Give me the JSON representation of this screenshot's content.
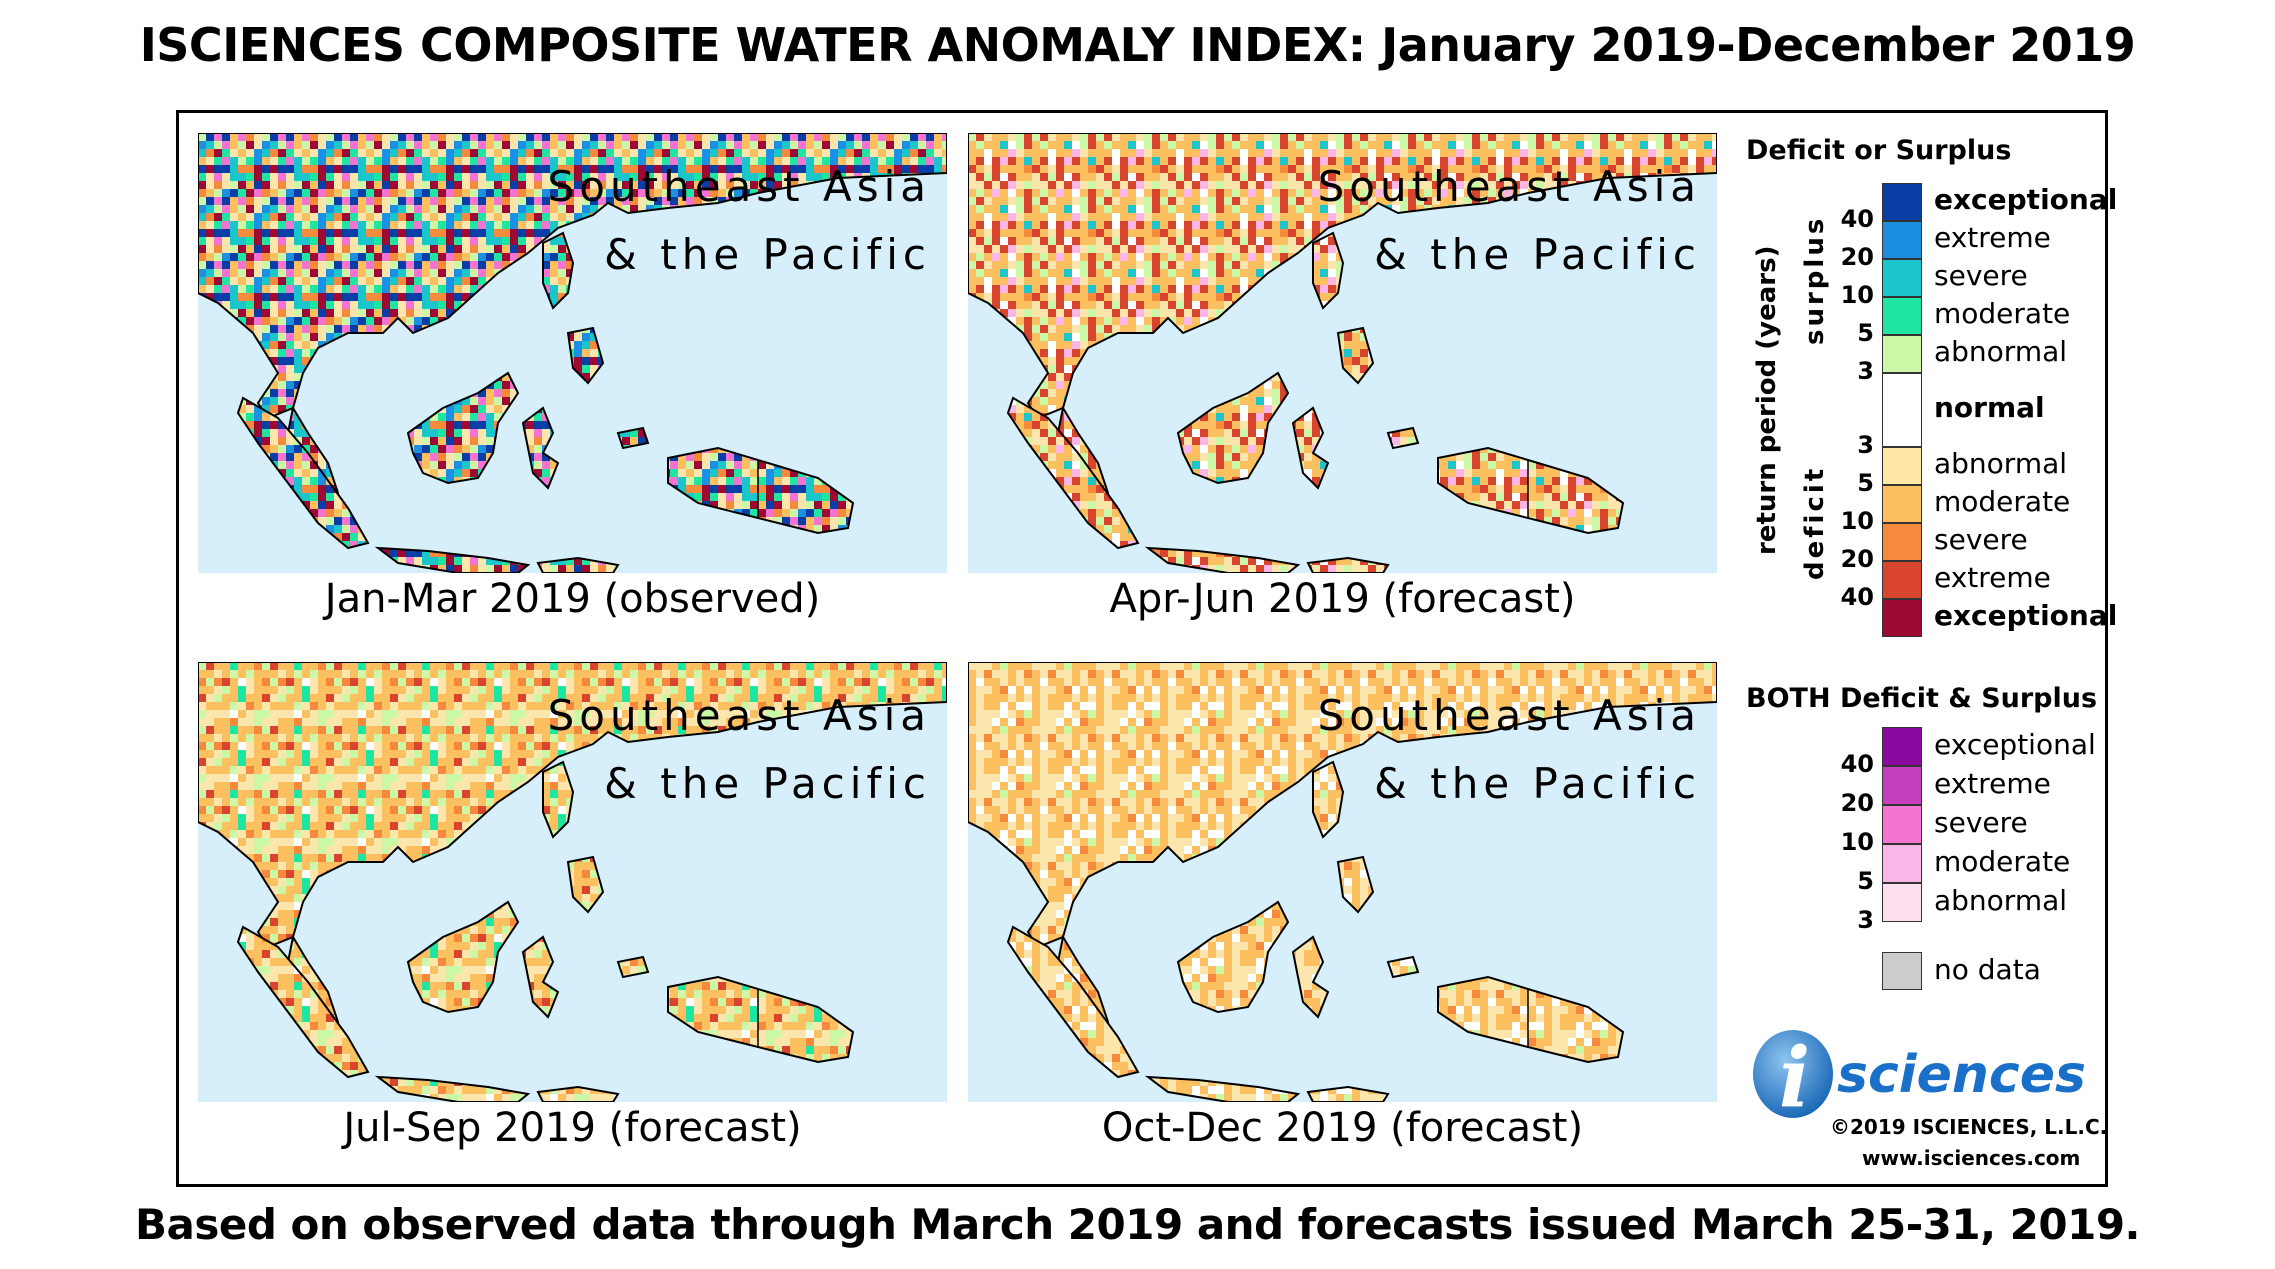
{
  "title": "ISCIENCES COMPOSITE WATER ANOMALY INDEX: January 2019-December 2019",
  "footer": "Based on observed data through March 2019 and forecasts issued March 25-31, 2019.",
  "panels": [
    {
      "region_line1": "Southeast Asia",
      "region_line2": "& the Pacific",
      "caption": "Jan-Mar 2019 (observed)",
      "dominant": "mixed-surplus-deficit"
    },
    {
      "region_line1": "Southeast Asia",
      "region_line2": "& the Pacific",
      "caption": "Apr-Jun 2019 (forecast)",
      "dominant": "moderate-deficit"
    },
    {
      "region_line1": "Southeast Asia",
      "region_line2": "& the Pacific",
      "caption": "Jul-Sep 2019 (forecast)",
      "dominant": "moderate-deficit"
    },
    {
      "region_line1": "Southeast Asia",
      "region_line2": "& the Pacific",
      "caption": "Oct-Dec 2019 (forecast)",
      "dominant": "moderate-deficit"
    }
  ],
  "legend": {
    "title": "Deficit or Surplus",
    "axis_label": "return period (years)",
    "surplus_label": "surplus",
    "deficit_label": "deficit",
    "surplus_ticks": [
      "40",
      "20",
      "10",
      "5",
      "3"
    ],
    "deficit_ticks": [
      "3",
      "5",
      "10",
      "20",
      "40"
    ],
    "classes": [
      {
        "label": "exceptional",
        "color": "#0a3ea6",
        "bold": true
      },
      {
        "label": "extreme",
        "color": "#1c8fe0",
        "bold": false
      },
      {
        "label": "severe",
        "color": "#1ac6cc",
        "bold": false
      },
      {
        "label": "moderate",
        "color": "#1ee6a2",
        "bold": false
      },
      {
        "label": "abnormal",
        "color": "#ccf7a6",
        "bold": false
      },
      {
        "label": "normal",
        "color": "#ffffff",
        "bold": true
      },
      {
        "label": "abnormal",
        "color": "#ffe8a6",
        "bold": false
      },
      {
        "label": "moderate",
        "color": "#fcc060",
        "bold": false
      },
      {
        "label": "severe",
        "color": "#f58a3c",
        "bold": false
      },
      {
        "label": "extreme",
        "color": "#d9442e",
        "bold": false
      },
      {
        "label": "exceptional",
        "color": "#9c0a34",
        "bold": true
      }
    ],
    "both_title": "BOTH Deficit & Surplus",
    "both_ticks": [
      "40",
      "20",
      "10",
      "5",
      "3"
    ],
    "both_classes": [
      {
        "label": "exceptional",
        "color": "#8a0aa0"
      },
      {
        "label": "extreme",
        "color": "#c63fbf"
      },
      {
        "label": "severe",
        "color": "#f474d2"
      },
      {
        "label": "moderate",
        "color": "#fbb6e8"
      },
      {
        "label": "abnormal",
        "color": "#fde0f0"
      }
    ],
    "nodata_label": "no data",
    "nodata_color": "#cccccc"
  },
  "brand": {
    "logo_letter": "i",
    "logo_text": "sciences",
    "copyright": "©2019 ISCIENCES, L.L.C.",
    "website": "www.isciences.com"
  },
  "colors": {
    "ocean": "#d6effa",
    "border": "#000000"
  }
}
